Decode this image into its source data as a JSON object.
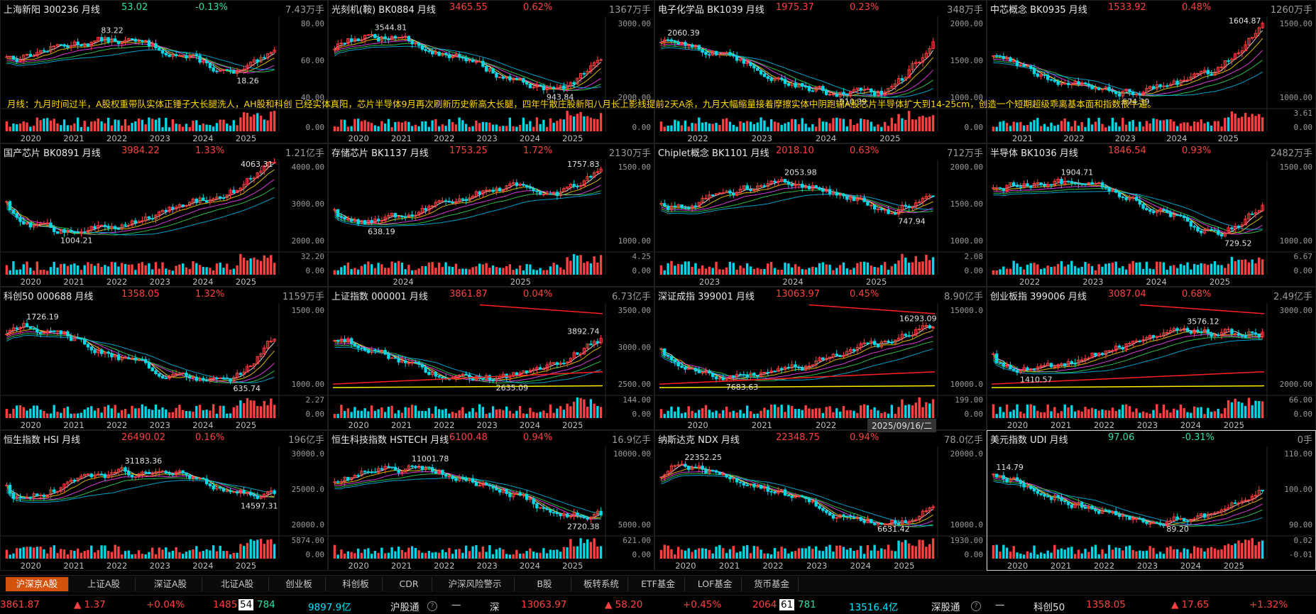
{
  "annotation": "月线：九月时间过半，A股权重带队实体正锤子大长腿洗人，AH股和科创 已经实体真阳，芯片半导体9月再次刷新历史新高大长腿，四年牛散庄股新阳八月长上影线提前2天A杀，九月大幅缩量接着摩擦实体中阴跑输A股芯片半导体扩大到14-25cm，创造一个短期超级乖离基本面和指数很牛逼。",
  "date_stamp": "2025/09/16/二",
  "colors": {
    "up": "#ff4040",
    "down": "#00d8e8",
    "ma5": "#ffffff",
    "ma10": "#ffd700",
    "ma20": "#ff44ff",
    "ma30": "#33dd55",
    "ma60": "#00bbee",
    "trend": "#ff2020",
    "support": "#ffee00"
  },
  "panels": [
    {
      "name": "上海新阳 300236 月线",
      "price": "53.02",
      "change": "-0.13%",
      "dir": "dn",
      "volume": "7.43万手",
      "ticks": [
        "80.00",
        "60.00",
        "40.00"
      ],
      "vol_ticks": [
        "0.00"
      ],
      "years": [
        "2020",
        "2021",
        "2022",
        "2023",
        "2024",
        "2025"
      ],
      "high": "83.22",
      "low": "18.26"
    },
    {
      "name": "光刻机(鞍) BK0884 月线",
      "price": "3465.55",
      "change": "0.62%",
      "dir": "up",
      "volume": "1367万手",
      "ticks": [
        "3000.00",
        "2000.00"
      ],
      "vol_ticks": [
        "0.00"
      ],
      "years": [
        "2020",
        "2021",
        "2022",
        "2023",
        "2024",
        "2025"
      ],
      "high": "3544.81",
      "low": "943.84"
    },
    {
      "name": "电子化学品 BK1039 月线",
      "price": "1975.37",
      "change": "0.23%",
      "dir": "up",
      "volume": "348万手",
      "ticks": [
        "2000.00",
        "1500.00",
        "1000.00"
      ],
      "vol_ticks": [
        "0.00"
      ],
      "years": [
        "2022",
        "2023",
        "2024",
        "2025"
      ],
      "high": "2060.39",
      "low": "910.39"
    },
    {
      "name": "中芯概念 BK0935 月线",
      "price": "1533.92",
      "change": "0.48%",
      "dir": "up",
      "volume": "1260万手",
      "ticks": [
        "1500.00",
        "1000.00"
      ],
      "vol_ticks": [
        "3.61",
        "0.00"
      ],
      "years": [
        "2021",
        "2022",
        "2023",
        "2024",
        "2025"
      ],
      "high": "1604.87",
      "low": "674.39"
    },
    {
      "name": "国产芯片 BK0891 月线",
      "price": "3984.22",
      "change": "1.33%",
      "dir": "up",
      "volume": "1.21亿手",
      "ticks": [
        "4000.00",
        "3000.00",
        "2000.00"
      ],
      "vol_ticks": [
        "32.20",
        "0.00"
      ],
      "years": [
        "2020",
        "2021",
        "2022",
        "2023",
        "2024",
        "2025"
      ],
      "high": "4063.31",
      "low": "1004.21"
    },
    {
      "name": "存储芯片 BK1137 月线",
      "price": "1753.25",
      "change": "1.72%",
      "dir": "up",
      "volume": "2130万手",
      "ticks": [
        "1500.00",
        "1000.00"
      ],
      "vol_ticks": [
        "4.25",
        "0.00"
      ],
      "years": [
        "2024",
        "2025"
      ],
      "high": "1757.83",
      "low": "638.19"
    },
    {
      "name": "Chiplet概念 BK1101 月线",
      "price": "2018.10",
      "change": "0.63%",
      "dir": "up",
      "volume": "712万手",
      "ticks": [
        "2000.00",
        "1500.00",
        "1000.00"
      ],
      "vol_ticks": [
        "2.08",
        "0.00"
      ],
      "years": [
        "2023",
        "2024",
        "2025"
      ],
      "high": "2053.98",
      "low": "747.94"
    },
    {
      "name": "半导体 BK1036 月线",
      "price": "1846.54",
      "change": "0.93%",
      "dir": "up",
      "volume": "2482万手",
      "ticks": [
        "1500.00",
        "1000.00"
      ],
      "vol_ticks": [
        "6.67",
        "0.00"
      ],
      "years": [
        "2022",
        "2023",
        "2024",
        "2025"
      ],
      "high": "1904.71",
      "low": "729.52"
    },
    {
      "name": "科创50 000688 月线",
      "price": "1358.05",
      "change": "1.32%",
      "dir": "up",
      "volume": "1159万手",
      "ticks": [
        "1500.00",
        "1000.00"
      ],
      "vol_ticks": [
        "2.27",
        "0.00"
      ],
      "years": [
        "2020",
        "2021",
        "2022",
        "2023",
        "2024",
        "2025"
      ],
      "high": "1726.19",
      "low": "635.74"
    },
    {
      "name": "上证指数 000001 月线",
      "price": "3861.87",
      "change": "0.04%",
      "dir": "up",
      "volume": "6.73亿手",
      "ticks": [
        "3500.00",
        "3000.00",
        "2500.00"
      ],
      "vol_ticks": [
        "144.00",
        "0.00"
      ],
      "years": [
        "2020",
        "2021",
        "2022",
        "2023",
        "2024",
        "2025"
      ],
      "high": "3892.74",
      "low": "2635.09"
    },
    {
      "name": "深证成指 399001 月线",
      "price": "13063.97",
      "change": "0.45%",
      "dir": "up",
      "volume": "8.90亿手",
      "ticks": [
        "15000.0",
        "10000.0"
      ],
      "vol_ticks": [
        "199.00",
        "0.00"
      ],
      "years": [
        "2020",
        "2021",
        "2022",
        "2023"
      ],
      "high": "16293.09",
      "low": "7683.63"
    },
    {
      "name": "创业板指 399006 月线",
      "price": "3087.04",
      "change": "0.68%",
      "dir": "up",
      "volume": "2.49亿手",
      "ticks": [
        "3000.00",
        "2000.00"
      ],
      "vol_ticks": [
        "66.00",
        "0.00"
      ],
      "years": [
        "2020",
        "2021",
        "2022",
        "2023",
        "2024",
        "2025"
      ],
      "high": "3576.12",
      "low": "1410.57"
    },
    {
      "name": "恒生指数 HSI 月线",
      "price": "26490.02",
      "change": "0.16%",
      "dir": "up",
      "volume": "196亿手",
      "ticks": [
        "30000.0",
        "25000.0",
        "20000.0"
      ],
      "vol_ticks": [
        "5874.00",
        "0.00"
      ],
      "years": [
        "2020",
        "2021",
        "2022",
        "2023",
        "2024",
        "2025"
      ],
      "high": "31183.36",
      "low": "14597.31"
    },
    {
      "name": "恒生科技指数 HSTECH 月线",
      "price": "6100.48",
      "change": "0.94%",
      "dir": "up",
      "volume": "16.9亿手",
      "ticks": [
        "10000.00",
        "5000.00"
      ],
      "vol_ticks": [
        "621.00",
        "0.00"
      ],
      "years": [
        "2020",
        "2021",
        "2022",
        "2023",
        "2024",
        "2025"
      ],
      "high": "11001.78",
      "low": "2720.38"
    },
    {
      "name": "纳斯达克 NDX 月线",
      "price": "22348.75",
      "change": "0.94%",
      "dir": "up",
      "volume": "78.0亿手",
      "ticks": [
        "20000.0",
        "10000.0"
      ],
      "vol_ticks": [
        "1930.00",
        "0.00"
      ],
      "years": [
        "2020",
        "2021",
        "2022",
        "2023",
        "2024",
        "2025"
      ],
      "high": "22352.25",
      "low": "6631.42"
    },
    {
      "name": "美元指数 UDI 月线",
      "price": "97.06",
      "change": "-0.31%",
      "dir": "dn",
      "volume": "0手",
      "ticks": [
        "110.00",
        "100.00",
        "90.00"
      ],
      "vol_ticks": [
        "0.02",
        "-0.01"
      ],
      "years": [
        "2020",
        "2021",
        "2022",
        "2023",
        "2024",
        "2025"
      ],
      "high": "114.79",
      "low": "89.20"
    }
  ],
  "tabs": [
    "沪深京A股",
    "上证A股",
    "深证A股",
    "北证A股",
    "创业板",
    "科创板",
    "CDR",
    "沪深风险警示",
    "B股",
    "板转系统",
    "ETF基金",
    "LOF基金",
    "货币基金"
  ],
  "ticker": {
    "sh_index": "3861.87",
    "sh_up": "▲ 1.37",
    "sh_pct": "+0.04%",
    "sh_up_count": "1485",
    "sh_flat": "54",
    "sh_down_count": "784",
    "sh_amount": "9897.9亿",
    "hgt": "沪股通",
    "hgt_val": "—",
    "sz": "深",
    "sz_index": "13063.97",
    "sz_up": "▲ 58.20",
    "sz_pct": "+0.45%",
    "sz_up_count": "2064",
    "sz_flat": "61",
    "sz_down_count": "781",
    "sz_amount": "13516.4亿",
    "sgt": "深股通",
    "sgt_val": "—",
    "kc": "科创50",
    "kc_index": "1358.05",
    "kc_up": "▲ 17.65",
    "kc_pct": "+1.32%"
  }
}
